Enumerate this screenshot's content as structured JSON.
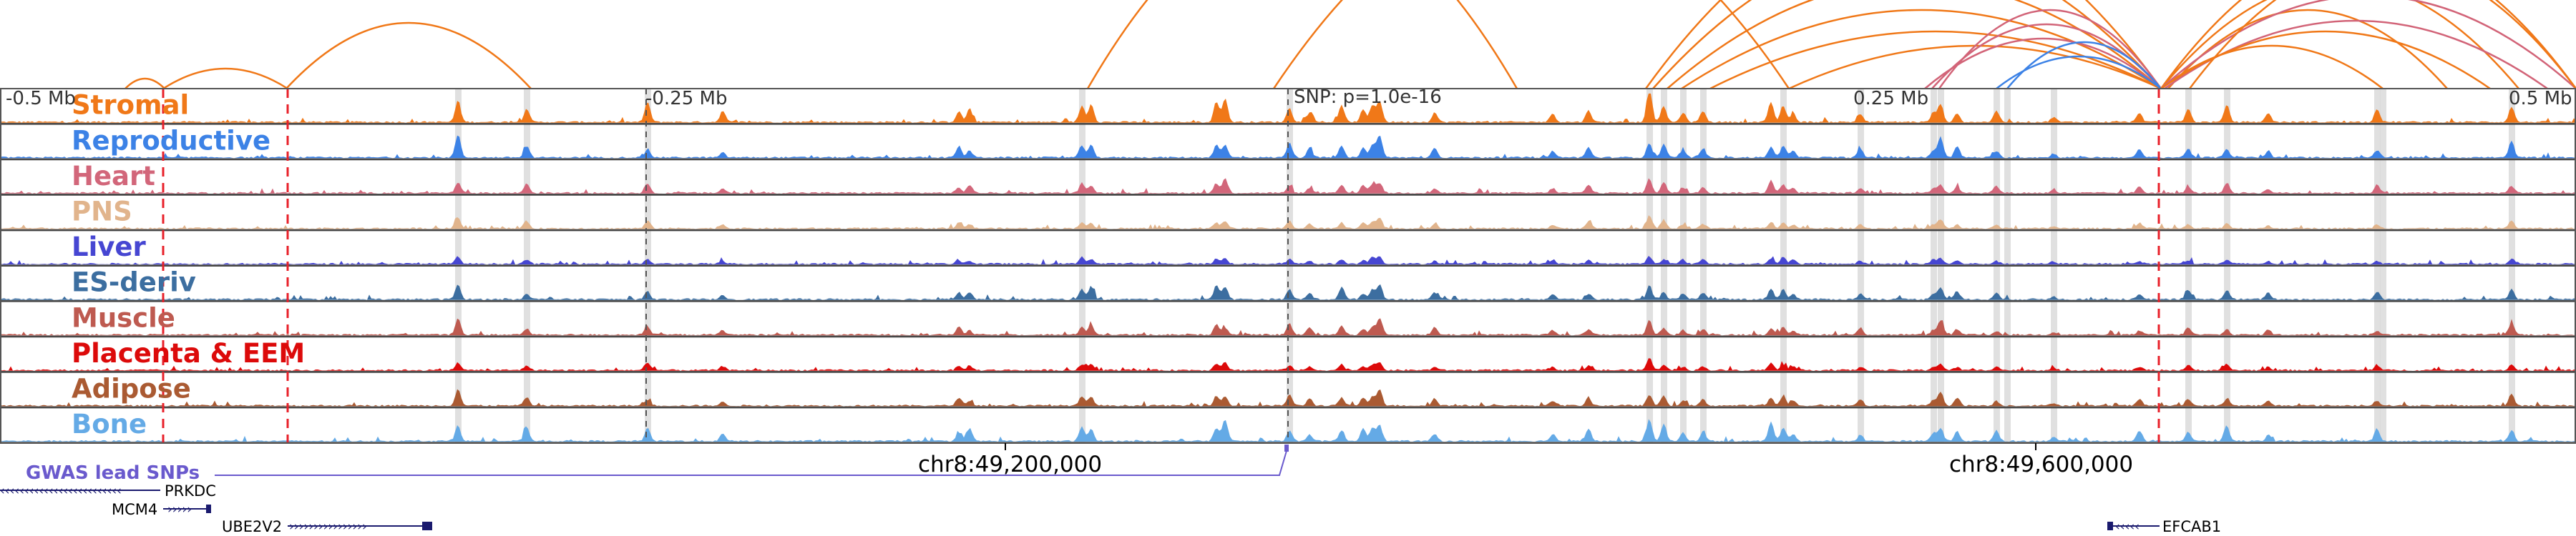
{
  "scale_labels": [
    "-0.5 Mb",
    "-0.25 Mb",
    "SNP: p=1.0e-16",
    "0.25 Mb",
    "0.5 Mb"
  ],
  "tracks": [
    {
      "name": "Stromal",
      "color": "#f07818"
    },
    {
      "name": "Reproductive",
      "color": "#3c82e6"
    },
    {
      "name": "Heart",
      "color": "#d2667a"
    },
    {
      "name": "PNS",
      "color": "#e1b48c"
    },
    {
      "name": "Liver",
      "color": "#4646d2"
    },
    {
      "name": "ES-deriv",
      "color": "#3c6ea0"
    },
    {
      "name": "Muscle",
      "color": "#be5a50"
    },
    {
      "name": "Placenta & EEM",
      "color": "#dc0a0a"
    },
    {
      "name": "Adipose",
      "color": "#aa5a32"
    },
    {
      "name": "Bone",
      "color": "#64aae6"
    }
  ],
  "gwas_label": "GWAS lead SNPs",
  "coordinates": [
    "chr8:49,200,000",
    "chr8:49,600,000"
  ],
  "genes": [
    {
      "name": "PRKDC",
      "strand": "-"
    },
    {
      "name": "MCM4",
      "strand": "+"
    },
    {
      "name": "UBE2V2",
      "strand": "+"
    },
    {
      "name": "EFCAB1",
      "strand": "-"
    }
  ],
  "colors": {
    "loop_orange": "#f07818",
    "loop_pink": "#d26478",
    "loop_blue": "#3c82e6",
    "marker_red": "#e8202a",
    "highlight_gray": "#d8d8d8",
    "gwas_purple": "#6a5acd",
    "gene_navy": "#1a1a6e"
  }
}
